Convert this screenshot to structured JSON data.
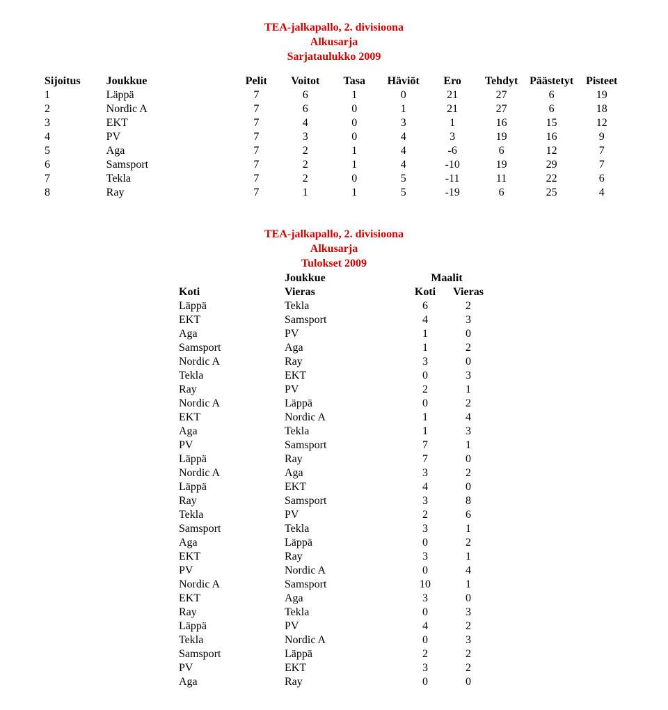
{
  "titles": {
    "main": "TEA-jalkapallo, 2. divisioona",
    "sub1": "Alkusarja",
    "sub2_standings": "Sarjataulukko 2009",
    "sub2_results": "Tulokset 2009"
  },
  "standings": {
    "headers": {
      "pos": "Sijoitus",
      "team": "Joukkue",
      "played": "Pelit",
      "wins": "Voitot",
      "draws": "Tasa",
      "losses": "Häviöt",
      "diff": "Ero",
      "for": "Tehdyt",
      "against": "Päästetyt",
      "points": "Pisteet"
    },
    "rows": [
      {
        "pos": "1",
        "team": "Läppä",
        "p": "7",
        "w": "6",
        "d": "1",
        "l": "0",
        "diff": "21",
        "for": "27",
        "ag": "6",
        "pts": "19"
      },
      {
        "pos": "2",
        "team": "Nordic A",
        "p": "7",
        "w": "6",
        "d": "0",
        "l": "1",
        "diff": "21",
        "for": "27",
        "ag": "6",
        "pts": "18"
      },
      {
        "pos": "3",
        "team": "EKT",
        "p": "7",
        "w": "4",
        "d": "0",
        "l": "3",
        "diff": "1",
        "for": "16",
        "ag": "15",
        "pts": "12"
      },
      {
        "pos": "4",
        "team": "PV",
        "p": "7",
        "w": "3",
        "d": "0",
        "l": "4",
        "diff": "3",
        "for": "19",
        "ag": "16",
        "pts": "9"
      },
      {
        "pos": "5",
        "team": "Aga",
        "p": "7",
        "w": "2",
        "d": "1",
        "l": "4",
        "diff": "-6",
        "for": "6",
        "ag": "12",
        "pts": "7"
      },
      {
        "pos": "6",
        "team": "Samsport",
        "p": "7",
        "w": "2",
        "d": "1",
        "l": "4",
        "diff": "-10",
        "for": "19",
        "ag": "29",
        "pts": "7"
      },
      {
        "pos": "7",
        "team": "Tekla",
        "p": "7",
        "w": "2",
        "d": "0",
        "l": "5",
        "diff": "-11",
        "for": "11",
        "ag": "22",
        "pts": "6"
      },
      {
        "pos": "8",
        "team": "Ray",
        "p": "7",
        "w": "1",
        "d": "1",
        "l": "5",
        "diff": "-19",
        "for": "6",
        "ag": "25",
        "pts": "4"
      }
    ]
  },
  "results": {
    "group_headers": {
      "team": "Joukkue",
      "goals": "Maalit"
    },
    "headers": {
      "home": "Koti",
      "away": "Vieras",
      "sh": "Koti",
      "sa": "Vieras"
    },
    "rows": [
      {
        "h": "Läppä",
        "a": "Tekla",
        "sh": "6",
        "sa": "2"
      },
      {
        "h": "EKT",
        "a": "Samsport",
        "sh": "4",
        "sa": "3"
      },
      {
        "h": "Aga",
        "a": "PV",
        "sh": "1",
        "sa": "0"
      },
      {
        "h": "Samsport",
        "a": "Aga",
        "sh": "1",
        "sa": "2"
      },
      {
        "h": "Nordic A",
        "a": "Ray",
        "sh": "3",
        "sa": "0"
      },
      {
        "h": "Tekla",
        "a": "EKT",
        "sh": "0",
        "sa": "3"
      },
      {
        "h": "Ray",
        "a": "PV",
        "sh": "2",
        "sa": "1"
      },
      {
        "h": "Nordic A",
        "a": "Läppä",
        "sh": "0",
        "sa": "2"
      },
      {
        "h": "EKT",
        "a": "Nordic A",
        "sh": "1",
        "sa": "4"
      },
      {
        "h": "Aga",
        "a": "Tekla",
        "sh": "1",
        "sa": "3"
      },
      {
        "h": "PV",
        "a": "Samsport",
        "sh": "7",
        "sa": "1"
      },
      {
        "h": "Läppä",
        "a": "Ray",
        "sh": "7",
        "sa": "0"
      },
      {
        "h": "Nordic A",
        "a": "Aga",
        "sh": "3",
        "sa": "2"
      },
      {
        "h": "Läppä",
        "a": "EKT",
        "sh": "4",
        "sa": "0"
      },
      {
        "h": "Ray",
        "a": "Samsport",
        "sh": "3",
        "sa": "8"
      },
      {
        "h": "Tekla",
        "a": "PV",
        "sh": "2",
        "sa": "6"
      },
      {
        "h": "Samsport",
        "a": "Tekla",
        "sh": "3",
        "sa": "1"
      },
      {
        "h": "Aga",
        "a": "Läppä",
        "sh": "0",
        "sa": "2"
      },
      {
        "h": "EKT",
        "a": "Ray",
        "sh": "3",
        "sa": "1"
      },
      {
        "h": "PV",
        "a": "Nordic A",
        "sh": "0",
        "sa": "4"
      },
      {
        "h": "Nordic A",
        "a": "Samsport",
        "sh": "10",
        "sa": "1"
      },
      {
        "h": "EKT",
        "a": "Aga",
        "sh": "3",
        "sa": "0"
      },
      {
        "h": "Ray",
        "a": "Tekla",
        "sh": "0",
        "sa": "3"
      },
      {
        "h": "Läppä",
        "a": "PV",
        "sh": "4",
        "sa": "2"
      },
      {
        "h": "Tekla",
        "a": "Nordic A",
        "sh": "0",
        "sa": "3"
      },
      {
        "h": "Samsport",
        "a": "Läppä",
        "sh": "2",
        "sa": "2"
      },
      {
        "h": "PV",
        "a": "EKT",
        "sh": "3",
        "sa": "2"
      },
      {
        "h": "Aga",
        "a": "Ray",
        "sh": "0",
        "sa": "0"
      }
    ]
  },
  "colors": {
    "title": "#cc0000",
    "text": "#000000",
    "background": "#ffffff"
  }
}
